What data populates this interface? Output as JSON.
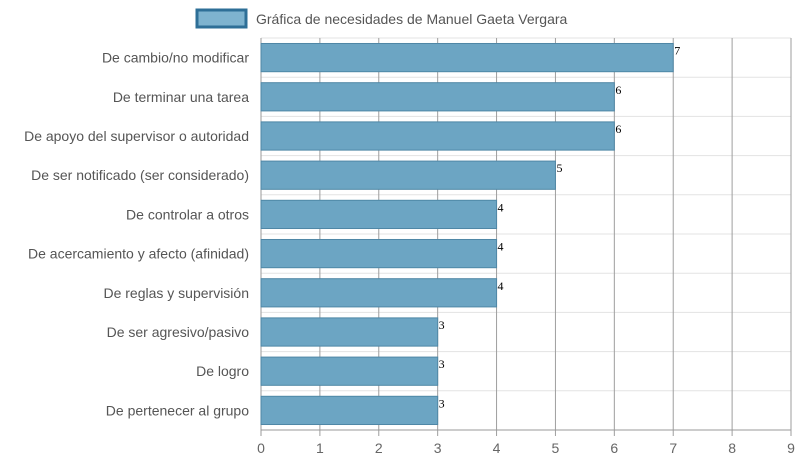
{
  "chart_data": {
    "type": "bar",
    "orientation": "horizontal",
    "categories": [
      "De cambio/no modificar",
      "De terminar una tarea",
      "De apoyo del supervisor o autoridad",
      "De ser notificado (ser considerado)",
      "De controlar a otros",
      "De acercamiento y afecto (afinidad)",
      "De reglas y supervisión",
      "De ser agresivo/pasivo",
      "De logro",
      "De pertenecer al grupo"
    ],
    "series": [
      {
        "name": "Gráfica de necesidades de Manuel Gaeta Vergara",
        "values": [
          7,
          6,
          6,
          5,
          4,
          4,
          4,
          3,
          3,
          3
        ]
      }
    ],
    "data_labels": [
      "7",
      "6",
      "6",
      "5",
      "4",
      "4",
      "4",
      "3",
      "3",
      "3"
    ],
    "xticks": [
      "0",
      "1",
      "2",
      "3",
      "4",
      "5",
      "6",
      "7",
      "8",
      "9"
    ],
    "xlim": [
      0,
      9
    ],
    "title": "",
    "xlabel": "",
    "ylabel": "",
    "grid": true,
    "legend_position": "top",
    "colors": {
      "bar_fill": "#6ca5c3",
      "bar_stroke": "#4f87a6",
      "legend_fill": "#7eb3cf",
      "legend_stroke": "#2e6f97",
      "grid_major": "#9e9e9e",
      "grid_row": "#e3e3e3"
    }
  }
}
